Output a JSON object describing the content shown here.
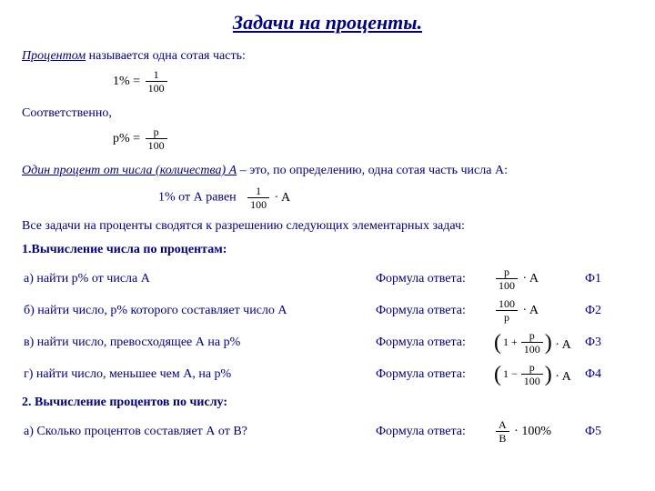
{
  "title": "Задачи на проценты.",
  "def_lead": "Процентом",
  "def_rest": "  называется одна сотая часть:",
  "eq1_lhs": "1% =",
  "eq1_num": "1",
  "eq1_den": "100",
  "line2": "Соответственно,",
  "eq2_lhs": "p% =",
  "eq2_num": "p",
  "eq2_den": "100",
  "def2_lead": "Один процент от числа (количества) А",
  "def2_rest": " – это, по определению, одна сотая часть числа А:",
  "eq3_prefix": "1% от А равен",
  "eq3_num": "1",
  "eq3_den": "100",
  "eq3_mult": "· A",
  "line3": "Все задачи на проценты сводятся к разрешению следующих элементарных задач:",
  "h1": "1.Вычисление числа по процентам:",
  "rows": [
    {
      "t": "а) найти p% от числа А",
      "fl": "Формула ответа:",
      "lab": "Ф1",
      "f": {
        "type": "frac_a",
        "num": "p",
        "den": "100",
        "mult": "· A"
      }
    },
    {
      "t": "б) найти число, p%  которого составляет число А",
      "fl": "Формула ответа:",
      "lab": "Ф2",
      "f": {
        "type": "frac_a",
        "num": "100",
        "den": "p",
        "mult": "· A"
      }
    },
    {
      "t": "в) найти число, превосходящее А на p%",
      "fl": "Формула ответа:",
      "lab": "Ф3",
      "f": {
        "type": "paren",
        "pre": "1 +",
        "num": "p",
        "den": "100",
        "mult": "· A"
      }
    },
    {
      "t": "г) найти число, меньшее чем А, на p%",
      "fl": "Формула ответа:",
      "lab": "Ф4",
      "f": {
        "type": "paren",
        "pre": "1 −",
        "num": "p",
        "den": "100",
        "mult": "· A"
      }
    }
  ],
  "h2": "2. Вычисление процентов по числу:",
  "row5": {
    "t": "а) Сколько процентов составляет А от В?",
    "fl": "Формула ответа:",
    "lab": "Ф5",
    "f": {
      "num": "A",
      "den": "B",
      "mult": "· 100%"
    }
  },
  "colors": {
    "text": "#000080",
    "formula": "#000000",
    "bg": "#ffffff"
  }
}
